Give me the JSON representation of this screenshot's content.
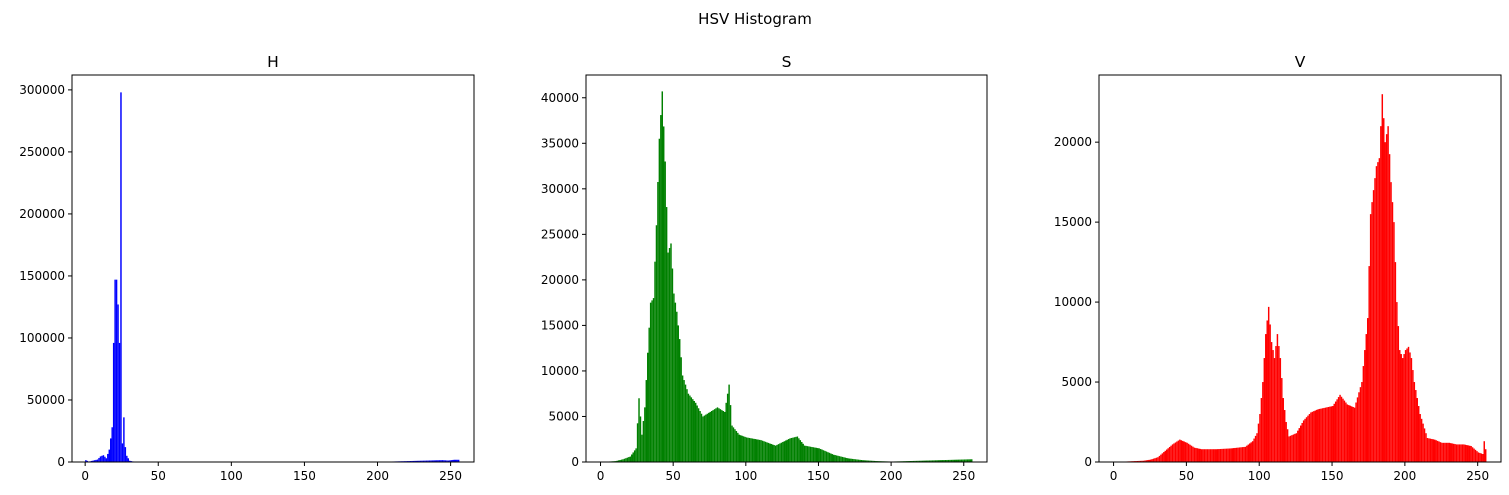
{
  "figure_title": "HSV Histogram",
  "chart_data": [
    {
      "type": "bar",
      "title": "H",
      "color": "#0000ff",
      "xlim": [
        -9,
        266
      ],
      "ylim": [
        0,
        312000
      ],
      "xticks": [
        0,
        50,
        100,
        150,
        200,
        250
      ],
      "yticks": [
        0,
        50000,
        100000,
        150000,
        200000,
        250000,
        300000
      ],
      "points": [
        [
          0,
          1500
        ],
        [
          2,
          300
        ],
        [
          8,
          2000
        ],
        [
          10,
          4500
        ],
        [
          12,
          5500
        ],
        [
          14,
          3000
        ],
        [
          16,
          10000
        ],
        [
          18,
          28000
        ],
        [
          19,
          96000
        ],
        [
          20,
          147000
        ],
        [
          21,
          147000
        ],
        [
          22,
          127000
        ],
        [
          23,
          96000
        ],
        [
          24,
          298000
        ],
        [
          25,
          15000
        ],
        [
          26,
          36000
        ],
        [
          27,
          12000
        ],
        [
          28,
          5000
        ],
        [
          30,
          1000
        ],
        [
          32,
          500
        ],
        [
          35,
          200
        ],
        [
          40,
          100
        ],
        [
          60,
          100
        ],
        [
          100,
          100
        ],
        [
          150,
          100
        ],
        [
          200,
          100
        ],
        [
          244,
          1500
        ],
        [
          248,
          1200
        ],
        [
          252,
          1800
        ]
      ]
    },
    {
      "type": "bar",
      "title": "S",
      "color": "#008000",
      "xlim": [
        -10,
        266
      ],
      "ylim": [
        0,
        42500
      ],
      "xticks": [
        0,
        50,
        100,
        150,
        200,
        250
      ],
      "yticks": [
        0,
        5000,
        10000,
        15000,
        20000,
        25000,
        30000,
        35000,
        40000
      ],
      "points": [
        [
          0,
          0
        ],
        [
          10,
          100
        ],
        [
          15,
          300
        ],
        [
          20,
          600
        ],
        [
          24,
          1500
        ],
        [
          26,
          7000
        ],
        [
          28,
          3000
        ],
        [
          30,
          6000
        ],
        [
          32,
          12000
        ],
        [
          34,
          17500
        ],
        [
          36,
          18000
        ],
        [
          38,
          26000
        ],
        [
          40,
          35500
        ],
        [
          42,
          40700
        ],
        [
          44,
          33000
        ],
        [
          46,
          23000
        ],
        [
          48,
          24000
        ],
        [
          50,
          18500
        ],
        [
          52,
          16500
        ],
        [
          54,
          13500
        ],
        [
          56,
          9500
        ],
        [
          58,
          8500
        ],
        [
          60,
          7500
        ],
        [
          65,
          6500
        ],
        [
          70,
          5000
        ],
        [
          75,
          5500
        ],
        [
          80,
          6000
        ],
        [
          85,
          5500
        ],
        [
          88,
          8500
        ],
        [
          90,
          4000
        ],
        [
          95,
          3000
        ],
        [
          100,
          2700
        ],
        [
          110,
          2400
        ],
        [
          120,
          1800
        ],
        [
          130,
          2600
        ],
        [
          135,
          2800
        ],
        [
          140,
          1800
        ],
        [
          150,
          1500
        ],
        [
          160,
          800
        ],
        [
          170,
          400
        ],
        [
          180,
          200
        ],
        [
          190,
          100
        ],
        [
          200,
          50
        ],
        [
          255,
          300
        ]
      ]
    },
    {
      "type": "bar",
      "title": "V",
      "color": "#ff0000",
      "xlim": [
        -10,
        266
      ],
      "ylim": [
        0,
        24200
      ],
      "xticks": [
        0,
        50,
        100,
        150,
        200,
        250
      ],
      "yticks": [
        0,
        5000,
        10000,
        15000,
        20000
      ],
      "points": [
        [
          0,
          0
        ],
        [
          20,
          80
        ],
        [
          25,
          150
        ],
        [
          30,
          300
        ],
        [
          35,
          700
        ],
        [
          40,
          1100
        ],
        [
          45,
          1400
        ],
        [
          50,
          1200
        ],
        [
          55,
          900
        ],
        [
          60,
          800
        ],
        [
          70,
          800
        ],
        [
          80,
          850
        ],
        [
          90,
          950
        ],
        [
          95,
          1300
        ],
        [
          98,
          1800
        ],
        [
          100,
          3000
        ],
        [
          102,
          5000
        ],
        [
          104,
          8000
        ],
        [
          106,
          9700
        ],
        [
          108,
          7500
        ],
        [
          110,
          6500
        ],
        [
          112,
          8000
        ],
        [
          114,
          6500
        ],
        [
          116,
          4000
        ],
        [
          118,
          2500
        ],
        [
          120,
          1600
        ],
        [
          125,
          1800
        ],
        [
          130,
          2600
        ],
        [
          135,
          3100
        ],
        [
          140,
          3300
        ],
        [
          145,
          3400
        ],
        [
          150,
          3500
        ],
        [
          155,
          4200
        ],
        [
          160,
          3600
        ],
        [
          165,
          3400
        ],
        [
          170,
          5000
        ],
        [
          174,
          9000
        ],
        [
          176,
          15500
        ],
        [
          178,
          17000
        ],
        [
          180,
          18500
        ],
        [
          182,
          19000
        ],
        [
          184,
          23000
        ],
        [
          186,
          20000
        ],
        [
          188,
          21000
        ],
        [
          190,
          17500
        ],
        [
          192,
          15000
        ],
        [
          194,
          10000
        ],
        [
          196,
          7000
        ],
        [
          198,
          6500
        ],
        [
          200,
          7000
        ],
        [
          202,
          7200
        ],
        [
          204,
          6500
        ],
        [
          206,
          5000
        ],
        [
          210,
          3000
        ],
        [
          215,
          1500
        ],
        [
          220,
          1400
        ],
        [
          225,
          1200
        ],
        [
          230,
          1200
        ],
        [
          235,
          1100
        ],
        [
          240,
          1100
        ],
        [
          245,
          1000
        ],
        [
          250,
          600
        ],
        [
          253,
          500
        ],
        [
          254,
          1300
        ],
        [
          255,
          800
        ]
      ]
    }
  ]
}
